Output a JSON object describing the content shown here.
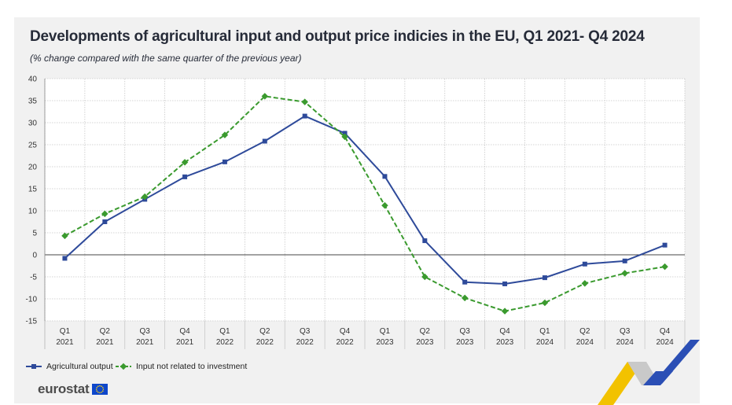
{
  "chart_data": {
    "type": "line",
    "title": "Developments of agricultural input and output price indicies in the EU, Q1 2021- Q4 2024",
    "subtitle": "(% change compared with the same quarter of the previous year)",
    "xlabel": "",
    "ylabel": "",
    "ylim": [
      -15,
      40
    ],
    "yticks": [
      40,
      35,
      30,
      25,
      20,
      15,
      10,
      5,
      0,
      -5,
      -10,
      -15
    ],
    "grid": true,
    "legend_position": "bottom-left",
    "categories": [
      {
        "q": "Q1",
        "y": "2021"
      },
      {
        "q": "Q2",
        "y": "2021"
      },
      {
        "q": "Q3",
        "y": "2021"
      },
      {
        "q": "Q4",
        "y": "2021"
      },
      {
        "q": "Q1",
        "y": "2022"
      },
      {
        "q": "Q2",
        "y": "2022"
      },
      {
        "q": "Q3",
        "y": "2022"
      },
      {
        "q": "Q4",
        "y": "2022"
      },
      {
        "q": "Q1",
        "y": "2023"
      },
      {
        "q": "Q2",
        "y": "2023"
      },
      {
        "q": "Q3",
        "y": "2023"
      },
      {
        "q": "Q4",
        "y": "2023"
      },
      {
        "q": "Q1",
        "y": "2024"
      },
      {
        "q": "Q2",
        "y": "2024"
      },
      {
        "q": "Q3",
        "y": "2024"
      },
      {
        "q": "Q4",
        "y": "2024"
      }
    ],
    "series": [
      {
        "name": "Agricultural output",
        "color": "#2e4a9a",
        "style": "solid",
        "marker": "square",
        "values": [
          -0.8,
          7.5,
          12.6,
          17.7,
          21.1,
          25.8,
          31.5,
          27.6,
          17.8,
          3.2,
          -6.2,
          -6.6,
          -5.2,
          -2.1,
          -1.4,
          2.2
        ]
      },
      {
        "name": "Input not related to investment",
        "color": "#3a9a2e",
        "style": "dashed",
        "marker": "diamond",
        "values": [
          4.3,
          9.3,
          13.2,
          21.0,
          27.2,
          36.0,
          34.7,
          26.8,
          11.2,
          -5.0,
          -9.8,
          -12.8,
          -10.9,
          -6.5,
          -4.2,
          -2.7
        ]
      }
    ]
  },
  "branding": {
    "name": "eurostat",
    "flag_color": "#0e47cb",
    "star_color": "#ffd617",
    "accent_colors": [
      "#f2c200",
      "#2b4fb5"
    ]
  }
}
